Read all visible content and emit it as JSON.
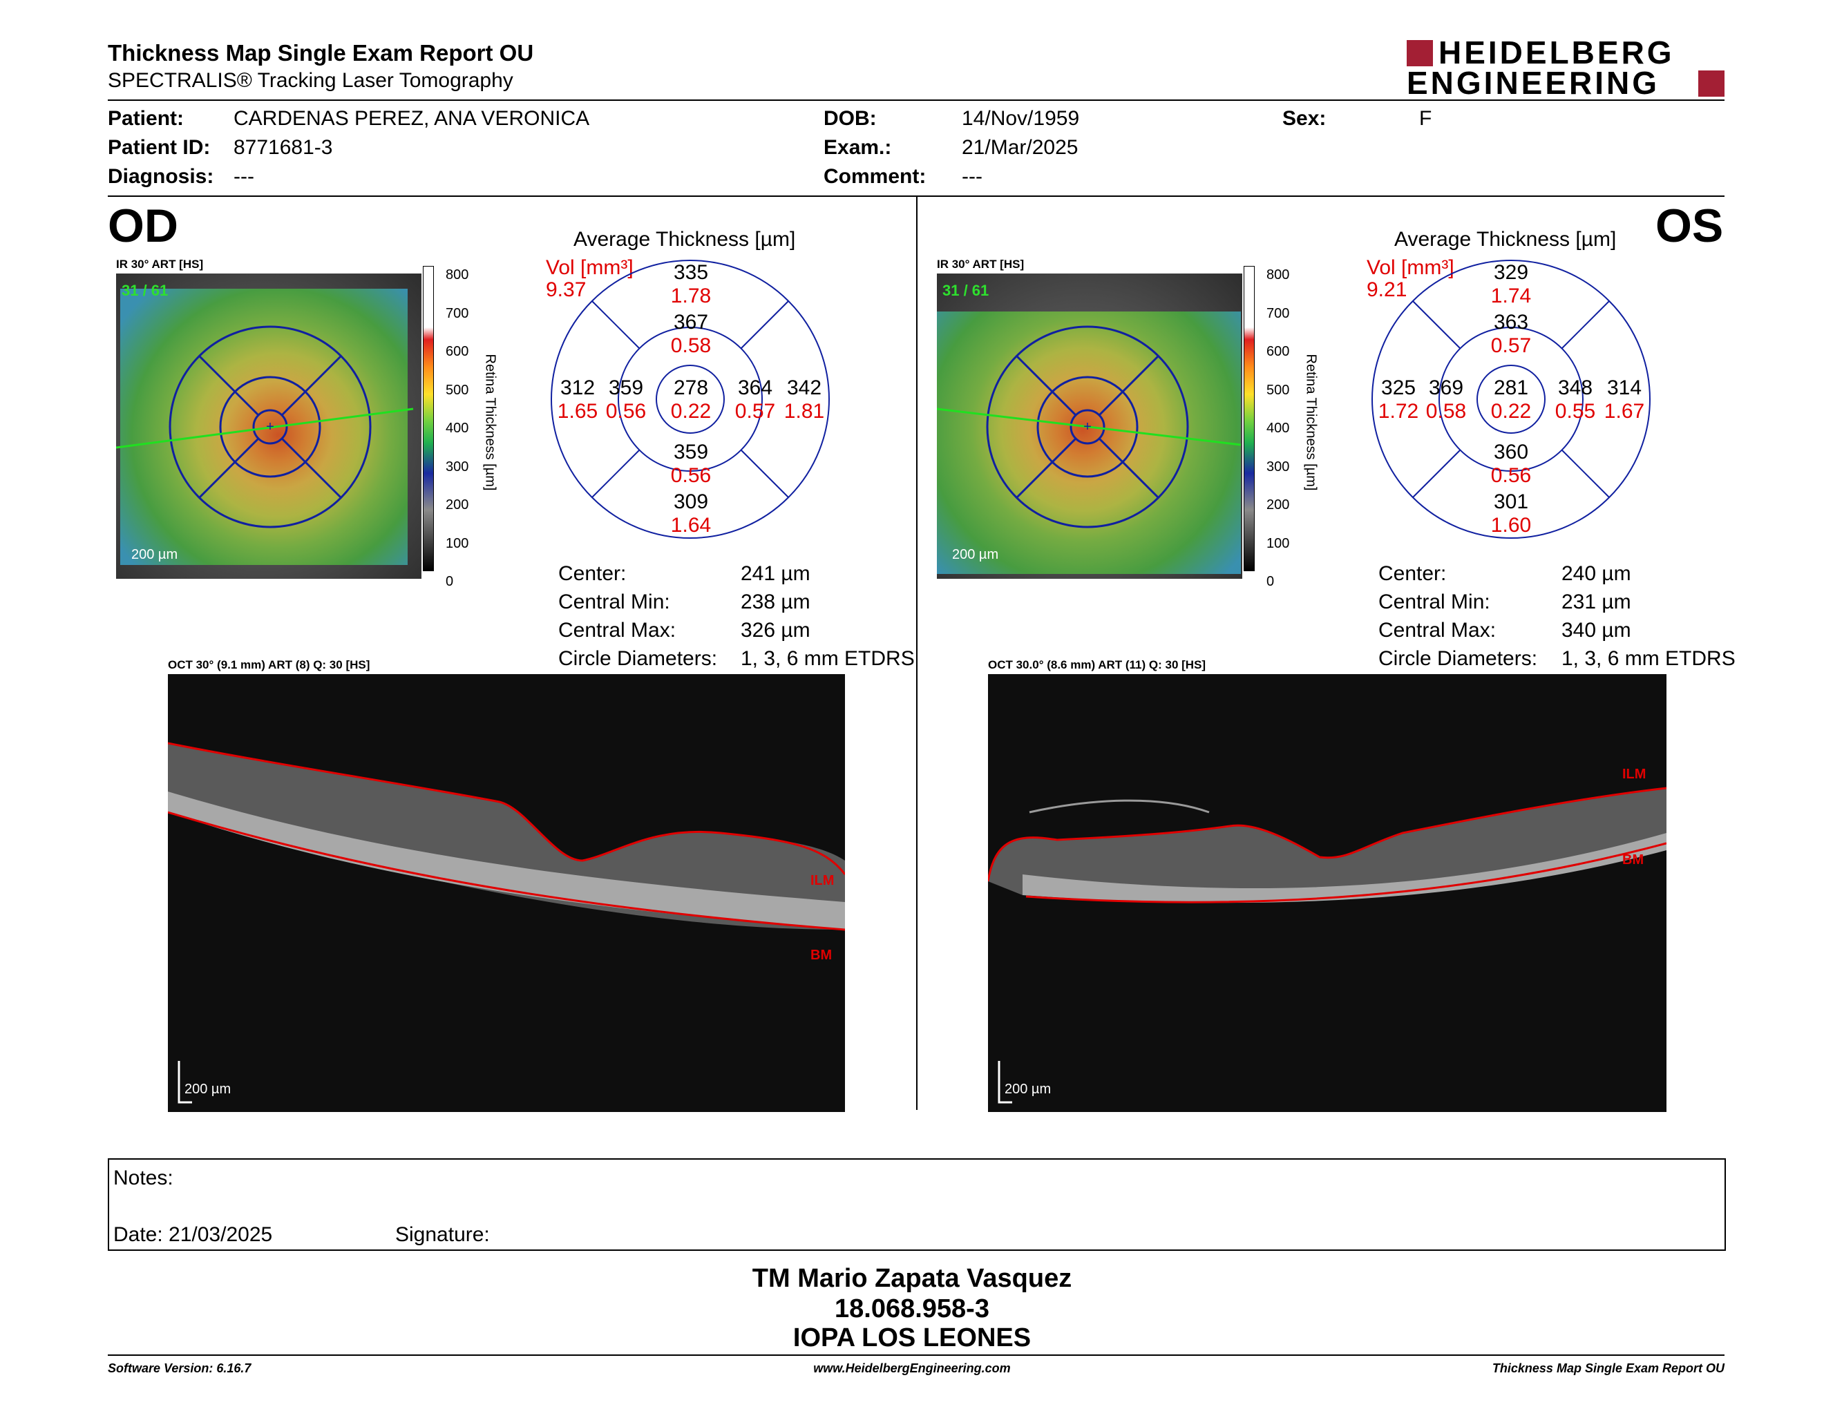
{
  "header": {
    "title": "Thickness Map Single Exam Report OU",
    "subtitle": "SPECTRALIS® Tracking Laser Tomography",
    "logo_line1": "HEIDELBERG",
    "logo_line2": "ENGINEERING",
    "brand_color": "#a31f34"
  },
  "patient": {
    "name_label": "Patient:",
    "name": "CARDENAS PEREZ, ANA VERONICA",
    "id_label": "Patient ID:",
    "id": "8771681-3",
    "diagnosis_label": "Diagnosis:",
    "diagnosis": "---",
    "dob_label": "DOB:",
    "dob": "14/Nov/1959",
    "exam_label": "Exam.:",
    "exam": "21/Mar/2025",
    "comment_label": "Comment:",
    "comment": "---",
    "sex_label": "Sex:",
    "sex": "F"
  },
  "od": {
    "eye_label": "OD",
    "ir_label": "IR 30° ART [HS]",
    "frame_label": "31 / 61",
    "scale_label": "200 µm",
    "colorbar_ticks": [
      "800",
      "700",
      "600",
      "500",
      "400",
      "300",
      "200",
      "100",
      "0"
    ],
    "colorbar_title": "Retina Thickness [µm]",
    "avg_title": "Average Thickness [µm]",
    "vol_label": "Vol [mm³]",
    "vol_value": "9.37",
    "sectors": {
      "outer_top": {
        "t": "335",
        "v": "1.78"
      },
      "inner_top": {
        "t": "367",
        "v": "0.58"
      },
      "outer_left": {
        "t": "312",
        "v": "1.65"
      },
      "inner_left": {
        "t": "359",
        "v": "0.56"
      },
      "center": {
        "t": "278",
        "v": "0.22"
      },
      "inner_right": {
        "t": "364",
        "v": "0.57"
      },
      "outer_right": {
        "t": "342",
        "v": "1.81"
      },
      "inner_bottom": {
        "t": "359",
        "v": "0.56"
      },
      "outer_bottom": {
        "t": "309",
        "v": "1.64"
      }
    },
    "stats": {
      "center_label": "Center:",
      "center": "241 µm",
      "min_label": "Central Min:",
      "min": "238 µm",
      "max_label": "Central Max:",
      "max": "326 µm",
      "diam_label": "Circle Diameters:",
      "diam": "1, 3, 6 mm ETDRS"
    },
    "oct_label": "OCT 30° (9.1 mm) ART (8) Q: 30 [HS]",
    "oct_scale": "200 µm",
    "ilm": "ILM",
    "bm": "BM"
  },
  "os": {
    "eye_label": "OS",
    "ir_label": "IR 30° ART [HS]",
    "frame_label": "31 / 61",
    "scale_label": "200 µm",
    "colorbar_ticks": [
      "800",
      "700",
      "600",
      "500",
      "400",
      "300",
      "200",
      "100",
      "0"
    ],
    "colorbar_title": "Retina Thickness [µm]",
    "avg_title": "Average Thickness [µm]",
    "vol_label": "Vol [mm³]",
    "vol_value": "9.21",
    "sectors": {
      "outer_top": {
        "t": "329",
        "v": "1.74"
      },
      "inner_top": {
        "t": "363",
        "v": "0.57"
      },
      "outer_left": {
        "t": "325",
        "v": "1.72"
      },
      "inner_left": {
        "t": "369",
        "v": "0.58"
      },
      "center": {
        "t": "281",
        "v": "0.22"
      },
      "inner_right": {
        "t": "348",
        "v": "0.55"
      },
      "outer_right": {
        "t": "314",
        "v": "1.67"
      },
      "inner_bottom": {
        "t": "360",
        "v": "0.56"
      },
      "outer_bottom": {
        "t": "301",
        "v": "1.60"
      }
    },
    "stats": {
      "center_label": "Center:",
      "center": "240 µm",
      "min_label": "Central Min:",
      "min": "231 µm",
      "max_label": "Central Max:",
      "max": "340 µm",
      "diam_label": "Circle Diameters:",
      "diam": "1, 3, 6 mm ETDRS"
    },
    "oct_label": "OCT 30.0° (8.6 mm) ART (11) Q: 30 [HS]",
    "oct_scale": "200 µm",
    "ilm": "ILM",
    "bm": "BM"
  },
  "notes": {
    "notes_label": "Notes:",
    "date_label": "Date: 21/03/2025",
    "signature_label": "Signature:"
  },
  "signer": {
    "name": "TM Mario Zapata Vasquez",
    "rut": "18.068.958-3",
    "org": "IOPA LOS LEONES"
  },
  "footer": {
    "software": "Software Version: 6.16.7",
    "website": "www.HeidelbergEngineering.com",
    "report": "Thickness Map Single Exam Report OU"
  }
}
